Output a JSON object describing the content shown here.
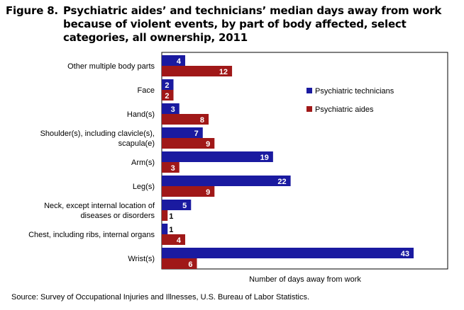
{
  "figure": {
    "title_prefix": "Figure 8.",
    "title_text": "Psychiatric aides’ and technicians’ median days away from work because of violent events, by part of body affected, select categories, all ownership, 2011",
    "source": "Source:  Survey of Occupational  Injuries and Illnesses, U.S. Bureau  of Labor Statistics."
  },
  "chart_data": {
    "type": "bar",
    "orientation": "horizontal",
    "title": "Figure 8. Psychiatric aides’ and technicians’ median days away from work because of violent events, by part of body affected, select categories, all ownership, 2011",
    "xlabel": "Number of days away from work",
    "ylabel": "",
    "xlim": [
      0,
      45
    ],
    "grid": false,
    "legend_position": "right",
    "categories": [
      [
        "Other multiple body parts"
      ],
      [
        "Face"
      ],
      [
        "Hand(s)"
      ],
      [
        "Shoulder(s), including clavicle(s),",
        "scapula(e)"
      ],
      [
        "Arm(s)"
      ],
      [
        "Leg(s)"
      ],
      [
        "Neck, except internal location of",
        "diseases or disorders"
      ],
      [
        "Chest, including ribs, internal organs"
      ],
      [
        "Wrist(s)"
      ]
    ],
    "series": [
      {
        "name": "Psychiatric technicians",
        "color": "#1a1aa0",
        "label_color": "#ffffff",
        "values": [
          4,
          2,
          3,
          7,
          19,
          22,
          5,
          1,
          43
        ]
      },
      {
        "name": "Psychiatric aides",
        "color": "#a01818",
        "label_color": "#ffffff",
        "values": [
          12,
          2,
          8,
          9,
          3,
          9,
          1,
          4,
          6
        ]
      }
    ]
  }
}
